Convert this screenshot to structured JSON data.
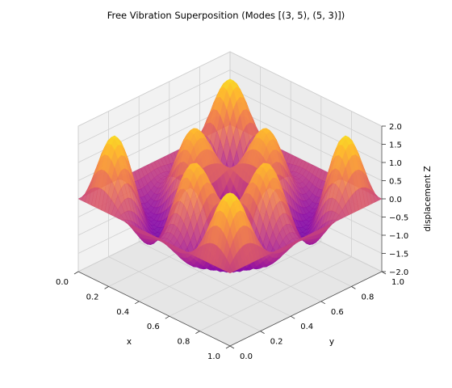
{
  "chart_data": {
    "type": "surface3d",
    "title": "Free Vibration Superposition (Modes [(3, 5), (5, 3)])",
    "xlabel": "x",
    "ylabel": "y",
    "zlabel": "displacement Z",
    "modes": [
      [
        3,
        5
      ],
      [
        5,
        3
      ]
    ],
    "amplitudes": [
      1,
      1
    ],
    "xlim": [
      0,
      1
    ],
    "ylim": [
      0,
      1
    ],
    "zlim": [
      -2,
      2
    ],
    "x_ticks": [
      "0.0",
      "0.2",
      "0.4",
      "0.6",
      "0.8",
      "1.0"
    ],
    "y_ticks": [
      "0.0",
      "0.2",
      "0.4",
      "0.6",
      "0.8",
      "1.0"
    ],
    "z_ticks": [
      "−2.0",
      "−1.5",
      "−1.0",
      "−0.5",
      "0.0",
      "0.5",
      "1.0",
      "1.5",
      "2.0"
    ],
    "colormap": "plasma",
    "grid": true,
    "pane_color": "#f2f2f2"
  }
}
